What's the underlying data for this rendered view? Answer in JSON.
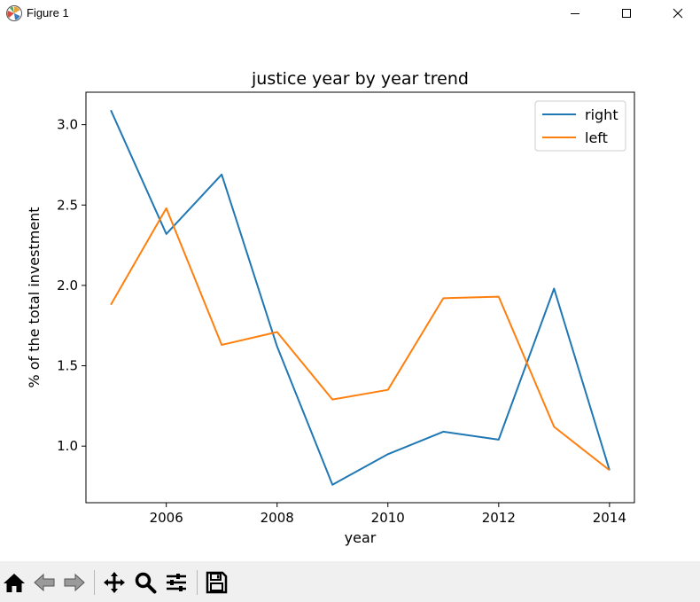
{
  "window": {
    "title": "Figure 1"
  },
  "toolbar": {
    "buttons": [
      "home-icon",
      "back-icon",
      "forward-icon",
      "pan-icon",
      "zoom-icon",
      "configure-icon",
      "save-icon"
    ]
  },
  "colors": {
    "right": "#1f77b4",
    "left": "#ff7f0e",
    "toolbar_bg": "#f0f0f0"
  },
  "chart_data": {
    "type": "line",
    "title": "justice year by year trend",
    "xlabel": "year",
    "ylabel": "% of the total investment",
    "x": [
      2005,
      2006,
      2007,
      2008,
      2009,
      2010,
      2011,
      2012,
      2013,
      2014
    ],
    "series": [
      {
        "name": "right",
        "values": [
          3.09,
          2.32,
          2.69,
          1.62,
          0.76,
          0.95,
          1.09,
          1.04,
          1.98,
          0.85
        ]
      },
      {
        "name": "left",
        "values": [
          1.88,
          2.48,
          1.63,
          1.71,
          1.29,
          1.35,
          1.92,
          1.93,
          1.12,
          0.85
        ]
      }
    ],
    "xlim": [
      2004.55,
      2014.45
    ],
    "ylim": [
      0.648,
      3.202
    ],
    "xticks": [
      2006,
      2008,
      2010,
      2012,
      2014
    ],
    "xtick_labels": [
      "2006",
      "2008",
      "2010",
      "2012",
      "2014"
    ],
    "yticks": [
      1.0,
      1.5,
      2.0,
      2.5,
      3.0
    ],
    "ytick_labels": [
      "1.0",
      "1.5",
      "2.0",
      "2.5",
      "3.0"
    ],
    "grid": false,
    "legend_position": "top-right"
  }
}
